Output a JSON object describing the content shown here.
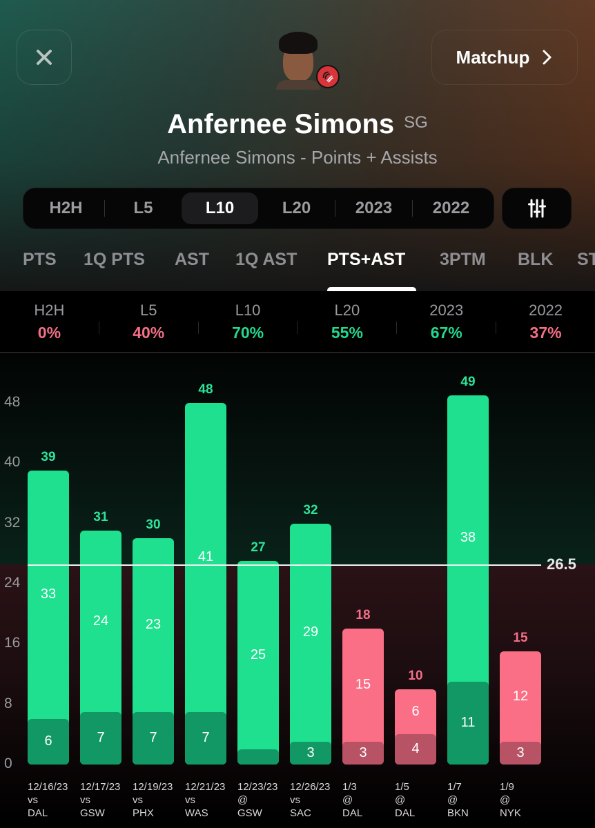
{
  "header": {
    "close_icon": "close-icon",
    "matchup_label": "Matchup",
    "matchup_icon": "chevron-right-icon",
    "player_name": "Anfernee Simons",
    "position": "SG",
    "subtitle": "Anfernee Simons - Points + Assists",
    "team_logo": "trail-blazers-logo"
  },
  "range_filters": {
    "items": [
      "H2H",
      "L5",
      "L10",
      "L20",
      "2023",
      "2022"
    ],
    "active": "L10",
    "filter_icon": "sliders-icon"
  },
  "stat_tabs": {
    "items": [
      "PTS",
      "1Q PTS",
      "AST",
      "1Q AST",
      "PTS+AST",
      "3PTM",
      "BLK",
      "ST"
    ],
    "active": "PTS+AST"
  },
  "hit_rates": [
    {
      "label": "H2H",
      "value": "0%",
      "color": "#f56f86"
    },
    {
      "label": "L5",
      "value": "40%",
      "color": "#f56f86"
    },
    {
      "label": "L10",
      "value": "70%",
      "color": "#22d98e"
    },
    {
      "label": "L20",
      "value": "55%",
      "color": "#22d98e"
    },
    {
      "label": "2023",
      "value": "67%",
      "color": "#22d98e"
    },
    {
      "label": "2022",
      "value": "37%",
      "color": "#f56f86"
    }
  ],
  "colors": {
    "over_primary": "#1ee08f",
    "over_secondary": "#129865",
    "over_text": "#2ee39a",
    "under_primary": "#fa6f86",
    "under_secondary": "#b85265",
    "under_text": "#f56f86"
  },
  "chart_data": {
    "type": "bar",
    "stacked": true,
    "title": "Anfernee Simons - Points + Assists (L10)",
    "xlabel": "",
    "ylabel": "",
    "ylim": [
      0,
      50
    ],
    "yticks": [
      0,
      8,
      16,
      24,
      32,
      40,
      48
    ],
    "threshold": 26.5,
    "categories": [
      "12/16/23 vs DAL",
      "12/17/23 vs GSW",
      "12/19/23 vs PHX",
      "12/21/23 vs WAS",
      "12/23/23 @ GSW",
      "12/26/23 vs SAC",
      "1/3 @ DAL",
      "1/5 @ DAL",
      "1/7 @ BKN",
      "1/9 @ NYK"
    ],
    "games": [
      {
        "date": "12/16/23",
        "loc": "vs",
        "opp": "DAL",
        "total": 39,
        "pts": 33,
        "ast": 6,
        "over": true,
        "ast_label": "6"
      },
      {
        "date": "12/17/23",
        "loc": "vs",
        "opp": "GSW",
        "total": 31,
        "pts": 24,
        "ast": 7,
        "over": true,
        "ast_label": "7"
      },
      {
        "date": "12/19/23",
        "loc": "vs",
        "opp": "PHX",
        "total": 30,
        "pts": 23,
        "ast": 7,
        "over": true,
        "ast_label": "7"
      },
      {
        "date": "12/21/23",
        "loc": "vs",
        "opp": "WAS",
        "total": 48,
        "pts": 41,
        "ast": 7,
        "over": true,
        "ast_label": "7"
      },
      {
        "date": "12/23/23",
        "loc": "@",
        "opp": "GSW",
        "total": 27,
        "pts": 25,
        "ast": 2,
        "over": true,
        "ast_label": ""
      },
      {
        "date": "12/26/23",
        "loc": "vs",
        "opp": "SAC",
        "total": 32,
        "pts": 29,
        "ast": 3,
        "over": true,
        "ast_label": "3"
      },
      {
        "date": "1/3",
        "loc": "@",
        "opp": "DAL",
        "total": 18,
        "pts": 15,
        "ast": 3,
        "over": false,
        "ast_label": "3"
      },
      {
        "date": "1/5",
        "loc": "@",
        "opp": "DAL",
        "total": 10,
        "pts": 6,
        "ast": 4,
        "over": false,
        "ast_label": "4"
      },
      {
        "date": "1/7",
        "loc": "@",
        "opp": "BKN",
        "total": 49,
        "pts": 38,
        "ast": 11,
        "over": true,
        "ast_label": "11"
      },
      {
        "date": "1/9",
        "loc": "@",
        "opp": "NYK",
        "total": 15,
        "pts": 12,
        "ast": 3,
        "over": false,
        "ast_label": "3"
      }
    ],
    "series": [
      {
        "name": "Points",
        "values": [
          33,
          24,
          23,
          41,
          25,
          29,
          15,
          6,
          38,
          12
        ]
      },
      {
        "name": "Assists",
        "values": [
          6,
          7,
          7,
          7,
          2,
          3,
          3,
          4,
          11,
          3
        ]
      }
    ],
    "totals": [
      39,
      31,
      30,
      48,
      27,
      32,
      18,
      10,
      49,
      15
    ],
    "threshold_label": "26.5"
  }
}
